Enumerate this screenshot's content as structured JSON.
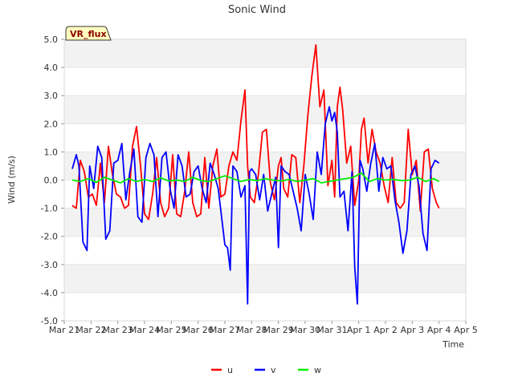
{
  "chart_data": {
    "type": "line",
    "title": "Sonic Wind",
    "xlabel": "Time",
    "ylabel": "Wind (m/s)",
    "badge": "VR_flux",
    "ylim": [
      -5.0,
      5.0
    ],
    "xlim": [
      0,
      15
    ],
    "yticks": [
      -5.0,
      -4.0,
      -3.0,
      -2.0,
      -1.0,
      0.0,
      1.0,
      2.0,
      3.0,
      4.0,
      5.0
    ],
    "yticklabels": [
      "-5.0",
      "-4.0",
      "-3.0",
      "-2.0",
      "-1.0",
      "0.0",
      "1.0",
      "2.0",
      "3.0",
      "4.0",
      "5.0"
    ],
    "xticklabels": [
      "Mar 21",
      "Mar 22",
      "Mar 23",
      "Mar 24",
      "Mar 25",
      "Mar 26",
      "Mar 27",
      "Mar 28",
      "Mar 29",
      "Mar 30",
      "Mar 31",
      "Apr 1",
      "Apr 2",
      "Apr 3",
      "Apr 4",
      "Apr 5"
    ],
    "series": [
      {
        "name": "u",
        "color": "#ff0000",
        "x": [
          0.3,
          0.45,
          0.6,
          0.75,
          0.9,
          1.05,
          1.2,
          1.35,
          1.5,
          1.65,
          1.8,
          1.95,
          2.1,
          2.25,
          2.4,
          2.55,
          2.7,
          2.85,
          3.0,
          3.15,
          3.3,
          3.45,
          3.6,
          3.75,
          3.9,
          4.05,
          4.2,
          4.35,
          4.5,
          4.65,
          4.8,
          4.95,
          5.1,
          5.25,
          5.4,
          5.55,
          5.7,
          5.85,
          6.0,
          6.15,
          6.3,
          6.45,
          6.6,
          6.75,
          6.85,
          6.95,
          7.1,
          7.25,
          7.4,
          7.55,
          7.7,
          7.85,
          8.0,
          8.1,
          8.2,
          8.35,
          8.5,
          8.65,
          8.8,
          8.95,
          9.1,
          9.25,
          9.4,
          9.55,
          9.7,
          9.85,
          10.0,
          10.1,
          10.2,
          10.3,
          10.4,
          10.55,
          10.7,
          10.85,
          11.0,
          11.1,
          11.2,
          11.35,
          11.5,
          11.65,
          11.8,
          11.95,
          12.1,
          12.25,
          12.4,
          12.55,
          12.7,
          12.85,
          13.0,
          13.15,
          13.3,
          13.45,
          13.6,
          13.75,
          13.9,
          14.0
        ],
        "values": [
          -0.9,
          -1.0,
          0.7,
          0.3,
          -0.6,
          -0.5,
          -0.9,
          0.6,
          -0.8,
          1.2,
          0.2,
          -0.5,
          -0.6,
          -1.0,
          -0.9,
          1.2,
          1.9,
          0.5,
          -1.2,
          -1.4,
          -0.5,
          0.8,
          -0.8,
          -1.3,
          -1.0,
          0.9,
          -1.2,
          -1.3,
          -0.4,
          1.0,
          -0.8,
          -1.3,
          -1.2,
          0.8,
          -1.0,
          0.5,
          1.1,
          -0.6,
          -0.5,
          0.5,
          1.0,
          0.7,
          2.1,
          3.2,
          0.5,
          -0.6,
          -0.8,
          0.2,
          1.7,
          1.8,
          -0.1,
          -0.7,
          0.5,
          0.8,
          -0.3,
          -0.6,
          0.9,
          0.8,
          -0.8,
          0.5,
          2.3,
          3.7,
          4.8,
          2.6,
          3.2,
          -0.2,
          0.7,
          -0.6,
          2.6,
          3.3,
          2.5,
          0.6,
          1.2,
          -0.9,
          0.0,
          1.8,
          2.2,
          0.6,
          1.8,
          1.0,
          0.6,
          -0.2,
          -0.8,
          0.8,
          -0.8,
          -1.0,
          -0.8,
          1.8,
          0.2,
          0.7,
          -1.1,
          1.0,
          1.1,
          -0.3,
          -0.8,
          -1.0
        ]
      },
      {
        "name": "v",
        "color": "#0000ff",
        "x": [
          0.3,
          0.45,
          0.55,
          0.7,
          0.85,
          0.95,
          1.1,
          1.25,
          1.4,
          1.55,
          1.7,
          1.85,
          2.0,
          2.15,
          2.3,
          2.45,
          2.6,
          2.75,
          2.9,
          3.05,
          3.2,
          3.35,
          3.5,
          3.65,
          3.8,
          3.95,
          4.1,
          4.25,
          4.4,
          4.55,
          4.7,
          4.85,
          5.0,
          5.15,
          5.3,
          5.45,
          5.6,
          5.75,
          5.9,
          6.0,
          6.1,
          6.2,
          6.3,
          6.45,
          6.6,
          6.75,
          6.85,
          6.92,
          7.0,
          7.15,
          7.3,
          7.45,
          7.6,
          7.75,
          7.9,
          8.0,
          8.1,
          8.25,
          8.4,
          8.55,
          8.7,
          8.85,
          9.0,
          9.15,
          9.3,
          9.45,
          9.6,
          9.75,
          9.9,
          10.0,
          10.1,
          10.2,
          10.3,
          10.45,
          10.6,
          10.75,
          10.85,
          10.95,
          11.05,
          11.15,
          11.3,
          11.45,
          11.6,
          11.75,
          11.9,
          12.05,
          12.2,
          12.35,
          12.5,
          12.65,
          12.8,
          12.95,
          13.1,
          13.25,
          13.4,
          13.55,
          13.7,
          13.85,
          14.0
        ],
        "values": [
          0.4,
          0.9,
          0.5,
          -2.2,
          -2.5,
          0.5,
          -0.3,
          1.2,
          0.8,
          -2.1,
          -1.8,
          0.6,
          0.7,
          1.3,
          -0.7,
          0.3,
          1.1,
          -1.3,
          -1.5,
          0.8,
          1.3,
          0.9,
          -1.3,
          0.8,
          1.0,
          -0.3,
          -1.0,
          0.9,
          0.5,
          -0.6,
          -0.5,
          0.3,
          0.5,
          -0.3,
          -0.8,
          0.6,
          0.2,
          -0.3,
          -1.5,
          -2.3,
          -2.4,
          -3.2,
          0.5,
          0.3,
          -0.6,
          -0.2,
          -4.4,
          0.3,
          0.4,
          0.2,
          -0.7,
          0.2,
          -1.1,
          -0.5,
          0.1,
          -2.4,
          0.5,
          0.3,
          0.2,
          -0.4,
          -1.0,
          -1.8,
          0.2,
          -0.5,
          -1.4,
          1.0,
          0.2,
          2.0,
          2.6,
          2.1,
          2.4,
          1.7,
          -0.6,
          -0.4,
          -1.8,
          0.3,
          -3.1,
          -4.4,
          0.7,
          0.4,
          -0.4,
          0.6,
          1.3,
          -0.4,
          0.8,
          0.4,
          0.5,
          -0.7,
          -1.5,
          -2.6,
          -1.8,
          0.2,
          0.5,
          -0.2,
          -1.9,
          -2.5,
          0.4,
          0.7,
          0.6
        ]
      },
      {
        "name": "w",
        "color": "#00ee00",
        "x": [
          0.3,
          0.6,
          0.9,
          1.2,
          1.5,
          1.8,
          2.1,
          2.4,
          2.7,
          3.0,
          3.3,
          3.6,
          3.9,
          4.2,
          4.5,
          4.8,
          5.1,
          5.4,
          5.7,
          6.0,
          6.3,
          6.6,
          6.9,
          7.2,
          7.5,
          7.8,
          8.1,
          8.4,
          8.7,
          9.0,
          9.3,
          9.6,
          9.9,
          10.2,
          10.5,
          10.8,
          11.1,
          11.4,
          11.7,
          12.0,
          12.3,
          12.6,
          12.9,
          13.2,
          13.5,
          13.8,
          14.0
        ],
        "values": [
          0.0,
          -0.05,
          0.05,
          -0.08,
          0.1,
          0.0,
          -0.1,
          0.05,
          -0.05,
          0.02,
          -0.05,
          0.08,
          -0.03,
          0.0,
          -0.05,
          0.1,
          -0.02,
          -0.05,
          0.05,
          0.15,
          0.05,
          -0.05,
          0.02,
          -0.02,
          0.05,
          0.0,
          -0.03,
          0.02,
          -0.05,
          0.0,
          0.05,
          -0.1,
          -0.05,
          0.0,
          0.05,
          0.1,
          0.25,
          -0.05,
          0.05,
          0.0,
          0.02,
          -0.02,
          0.0,
          0.1,
          -0.05,
          0.05,
          -0.05
        ]
      }
    ],
    "legend": [
      "u",
      "v",
      "w"
    ],
    "grid": "horizontal bands",
    "legend_position": "bottom-center"
  }
}
